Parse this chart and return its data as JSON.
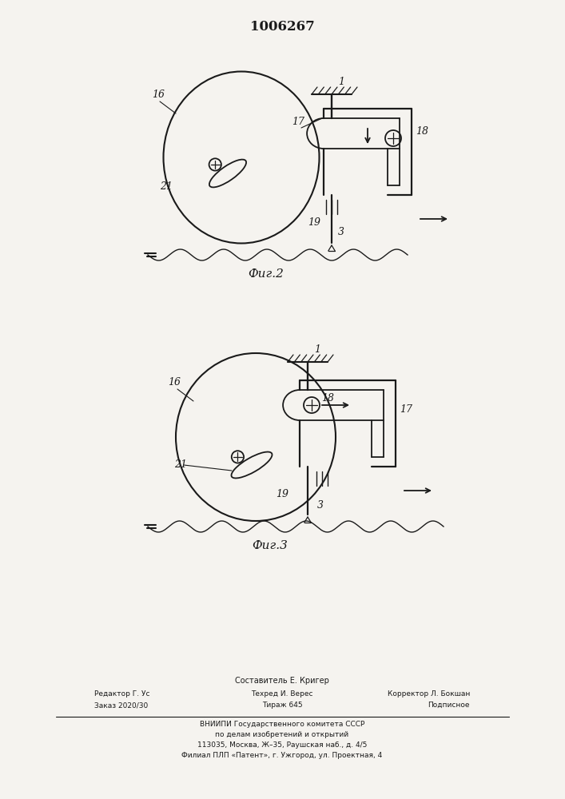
{
  "title": "1006267",
  "fig2_label": "Фиг.2",
  "fig3_label": "Фиг.3",
  "footer_line0": "Составитель Е. Кригер",
  "footer_line1a": "Редактор Г. Ус",
  "footer_line1b": "Техред И. Верес",
  "footer_line1c": "Корректор Л. Бокшан",
  "footer_line2a": "Заказ 2020/30",
  "footer_line2b": "Тираж 645",
  "footer_line2c": "Подписное",
  "footer_line3": "ВНИИПИ Государственного комитета СССР",
  "footer_line4": "по делам изобретений и открытий",
  "footer_line5": "113035, Москва, Ж–35, Раушская наб., д. 4/5",
  "footer_line6": "Филиал ПЛП «Патент», г. Ужгород, ул. Проектная, 4",
  "line_color": "#1a1a1a",
  "bg_color": "#f5f3ef"
}
